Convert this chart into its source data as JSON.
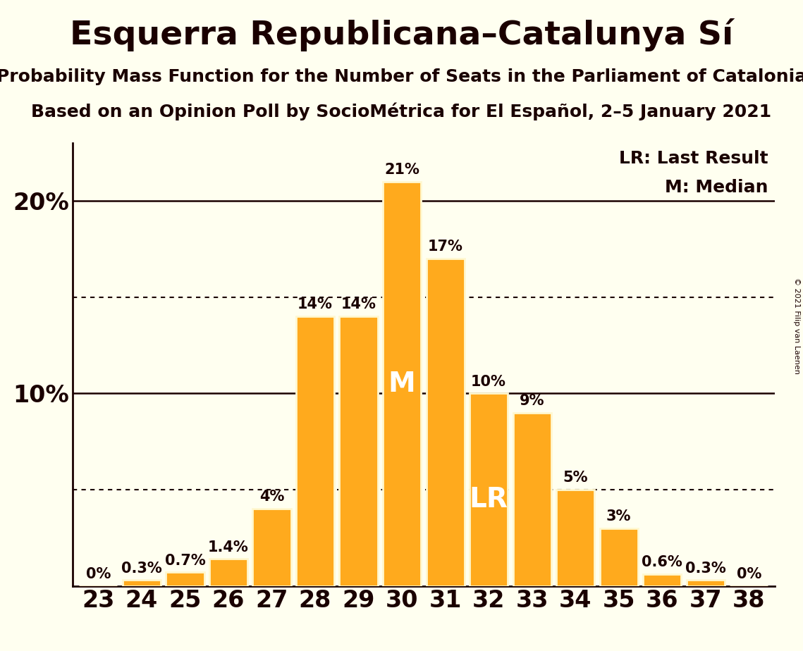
{
  "title": "Esquerra Republicana–Catalunya Sí",
  "subtitle1": "Probability Mass Function for the Number of Seats in the Parliament of Catalonia",
  "subtitle2": "Based on an Opinion Poll by SocioMétrica for El Español, 2–5 January 2021",
  "copyright": "© 2021 Filip van Laenen",
  "categories": [
    23,
    24,
    25,
    26,
    27,
    28,
    29,
    30,
    31,
    32,
    33,
    34,
    35,
    36,
    37,
    38
  ],
  "values": [
    0.0,
    0.3,
    0.7,
    1.4,
    4.0,
    14.0,
    14.0,
    21.0,
    17.0,
    10.0,
    9.0,
    5.0,
    3.0,
    0.6,
    0.3,
    0.0
  ],
  "labels": [
    "0%",
    "0.3%",
    "0.7%",
    "1.4%",
    "4%",
    "14%",
    "14%",
    "21%",
    "17%",
    "10%",
    "9%",
    "5%",
    "3%",
    "0.6%",
    "0.3%",
    "0%"
  ],
  "bar_color": "#FFAA1D",
  "bar_edge_color": "#FFF8D0",
  "background_color": "#FFFFF0",
  "text_color": "#1a0000",
  "median_seat": 30,
  "lr_seat": 32,
  "median_label": "M",
  "lr_label": "LR",
  "legend_lr": "LR: Last Result",
  "legend_m": "M: Median",
  "ylim": [
    0,
    23
  ],
  "dotted_lines": [
    5.0,
    15.0
  ],
  "solid_lines": [
    10.0,
    20.0
  ],
  "bar_label_fontsize": 15,
  "title_fontsize": 34,
  "subtitle_fontsize": 18,
  "axis_tick_fontsize": 24,
  "annotation_fontsize": 28,
  "legend_fontsize": 18
}
